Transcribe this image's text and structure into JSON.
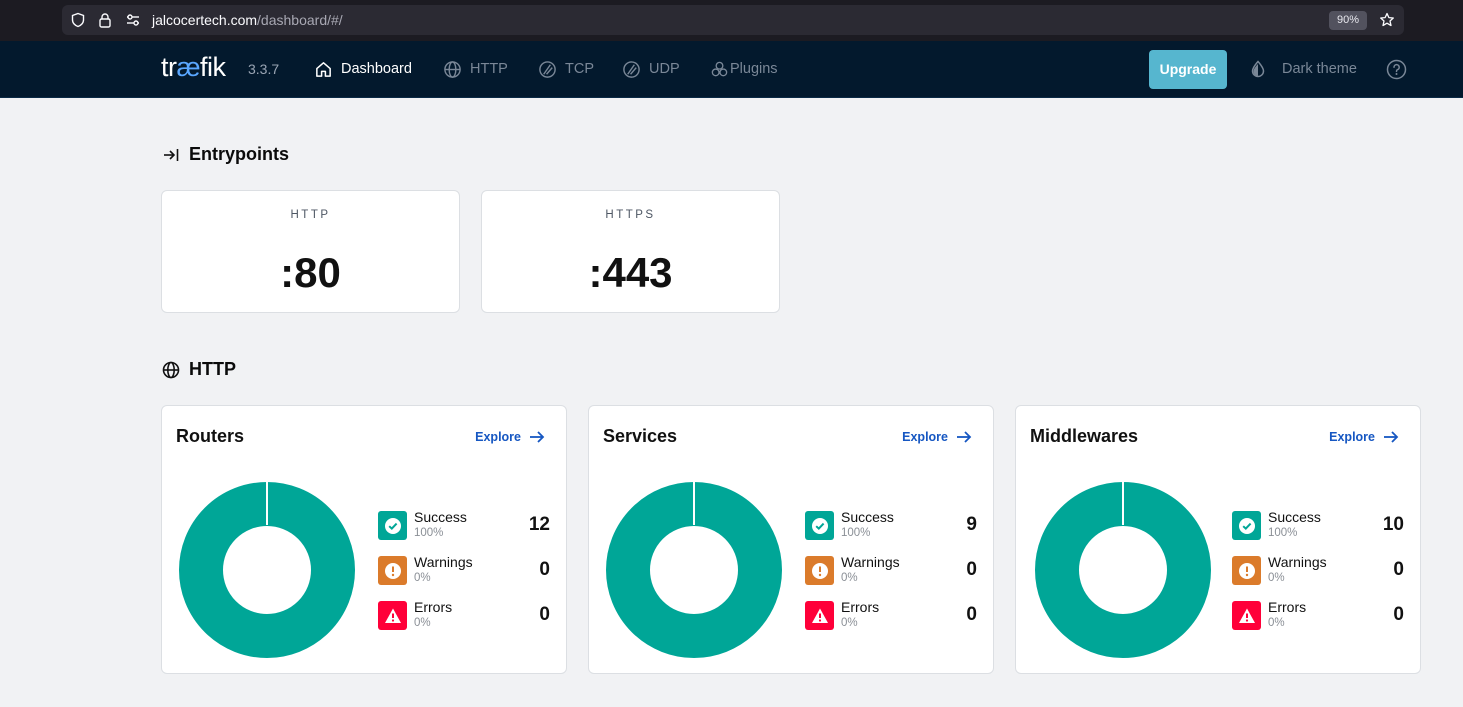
{
  "browser": {
    "url_host": "jalcocertech.com",
    "url_path": "/dashboard/#/",
    "zoom": "90%"
  },
  "nav": {
    "logo_pre": "tr",
    "logo_ae": "æ",
    "logo_post": "fik",
    "version": "3.3.7",
    "items": [
      {
        "label": "Dashboard",
        "icon": "home-icon"
      },
      {
        "label": "HTTP",
        "icon": "globe-icon"
      },
      {
        "label": "TCP",
        "icon": "tcp-icon"
      },
      {
        "label": "UDP",
        "icon": "udp-icon"
      },
      {
        "label": "Plugins",
        "icon": "plugins-icon"
      }
    ],
    "upgrade_label": "Upgrade",
    "theme_label": "Dark theme"
  },
  "entrypoints": {
    "title": "Entrypoints",
    "items": [
      {
        "name": "HTTP",
        "value": ":80"
      },
      {
        "name": "HTTPS",
        "value": ":443"
      }
    ]
  },
  "http": {
    "title": "HTTP",
    "explore_label": "Explore",
    "cards": [
      {
        "title": "Routers",
        "stats": [
          {
            "label": "Success",
            "pct": "100%",
            "count": "12"
          },
          {
            "label": "Warnings",
            "pct": "0%",
            "count": "0"
          },
          {
            "label": "Errors",
            "pct": "0%",
            "count": "0"
          }
        ]
      },
      {
        "title": "Services",
        "stats": [
          {
            "label": "Success",
            "pct": "100%",
            "count": "9"
          },
          {
            "label": "Warnings",
            "pct": "0%",
            "count": "0"
          },
          {
            "label": "Errors",
            "pct": "0%",
            "count": "0"
          }
        ]
      },
      {
        "title": "Middlewares",
        "stats": [
          {
            "label": "Success",
            "pct": "100%",
            "count": "10"
          },
          {
            "label": "Warnings",
            "pct": "0%",
            "count": "0"
          },
          {
            "label": "Errors",
            "pct": "0%",
            "count": "0"
          }
        ]
      }
    ]
  },
  "colors": {
    "success": "#00a697",
    "warning": "#db7b2b",
    "error": "#ff0039",
    "nav_bg": "#03192d",
    "upgrade": "#56b6cf"
  }
}
